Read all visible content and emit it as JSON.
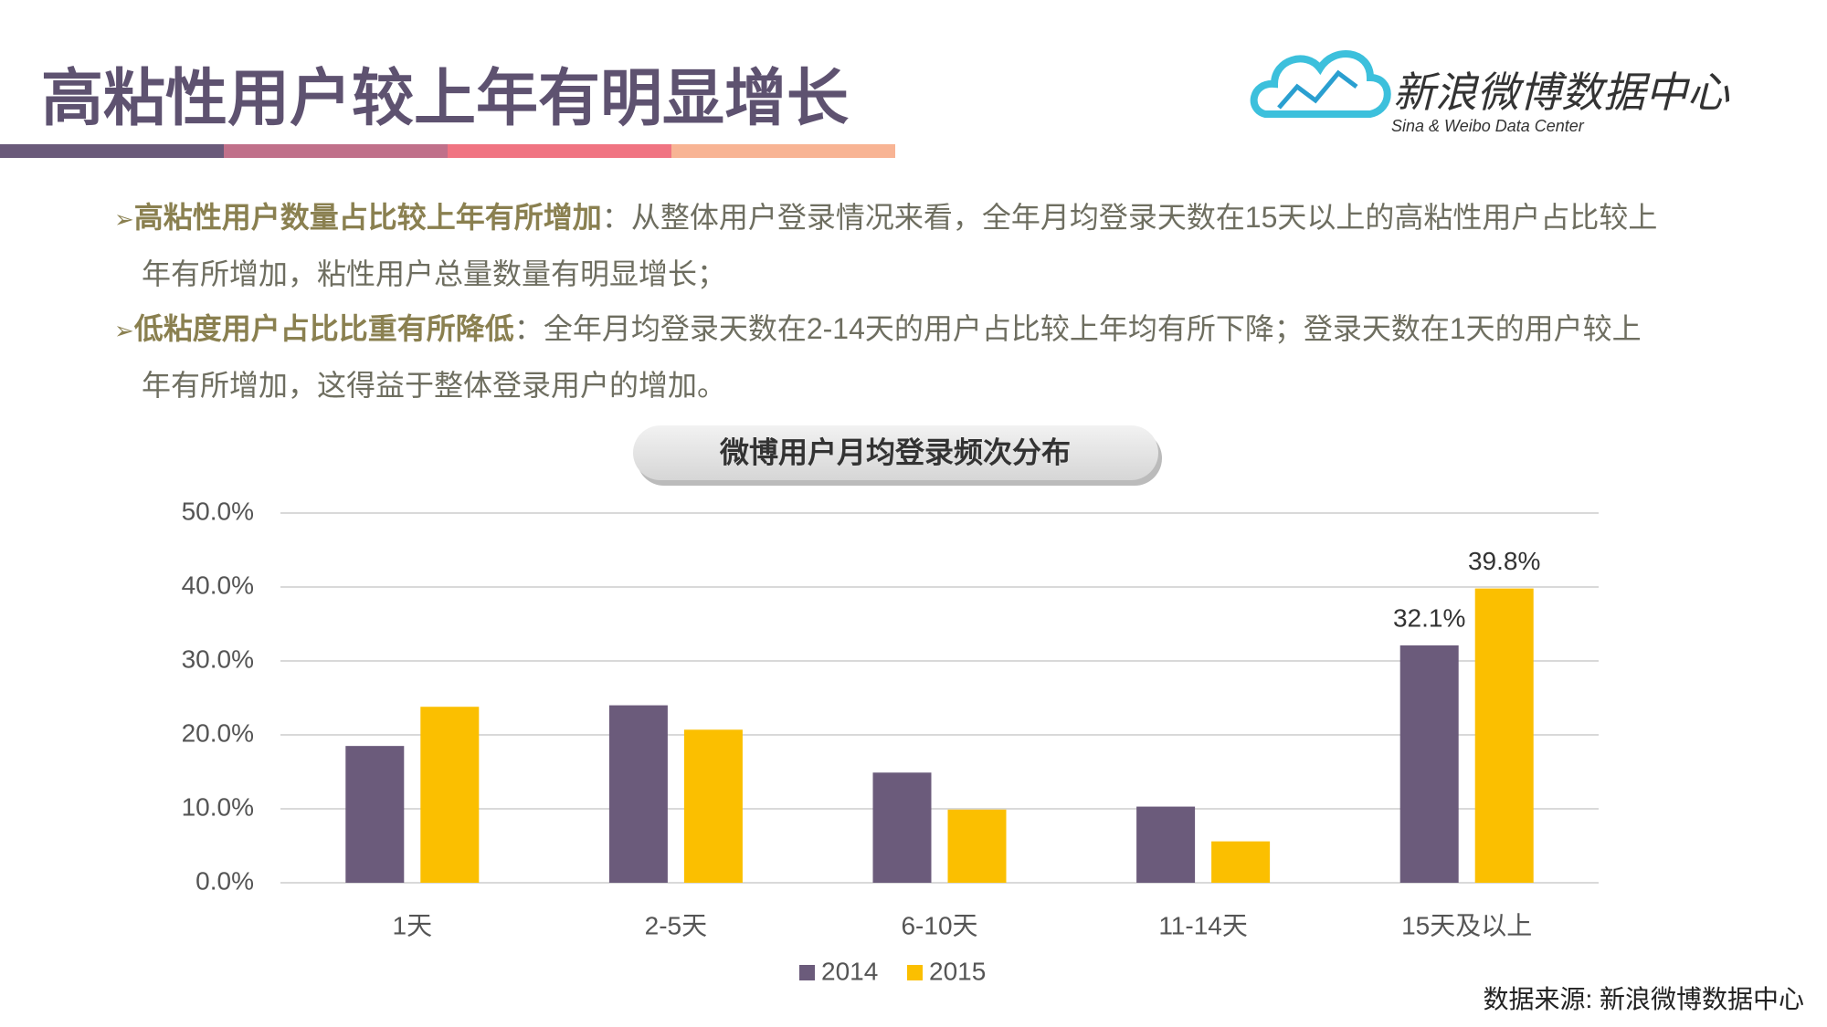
{
  "header": {
    "title": "高粘性用户较上年有明显增长"
  },
  "logo": {
    "name": "新浪微博数据中心",
    "subtitle": "Sina & Weibo Data Center"
  },
  "bullets": [
    {
      "lead": "高粘性用户数量占比较上年有所增加",
      "text": "：从整体用户登录情况来看，全年月均登录天数在15天以上的高粘性用户占比较上年有所增加，粘性用户总量数量有明显增长；"
    },
    {
      "lead": "低粘度用户占比比重有所降低",
      "text": "：全年月均登录天数在2-14天的用户占比较上年均有所下降；登录天数在1天的用户较上年有所增加，这得益于整体登录用户的增加。"
    }
  ],
  "chart_data": {
    "type": "bar",
    "title": "微博用户月均登录频次分布",
    "categories": [
      "1天",
      "2-5天",
      "6-10天",
      "11-14天",
      "15天及以上"
    ],
    "series": [
      {
        "name": "2014",
        "color": "#6b5b7b",
        "values": [
          18.5,
          24.0,
          14.9,
          10.3,
          32.1
        ],
        "value_labels": [
          null,
          null,
          null,
          null,
          "32.1%"
        ]
      },
      {
        "name": "2015",
        "color": "#fbbf00",
        "values": [
          23.8,
          20.7,
          9.9,
          5.6,
          39.8
        ],
        "value_labels": [
          null,
          null,
          null,
          null,
          "39.8%"
        ]
      }
    ],
    "ylim": [
      0,
      50
    ],
    "yticks": [
      {
        "value": 0,
        "label": "0.0%"
      },
      {
        "value": 10,
        "label": "10.0%"
      },
      {
        "value": 20,
        "label": "20.0%"
      },
      {
        "value": 30,
        "label": "30.0%"
      },
      {
        "value": 40,
        "label": "40.0%"
      },
      {
        "value": 50,
        "label": "50.0%"
      }
    ],
    "grid": true,
    "legend": "bottom"
  },
  "source": "数据来源: 新浪微博数据中心"
}
